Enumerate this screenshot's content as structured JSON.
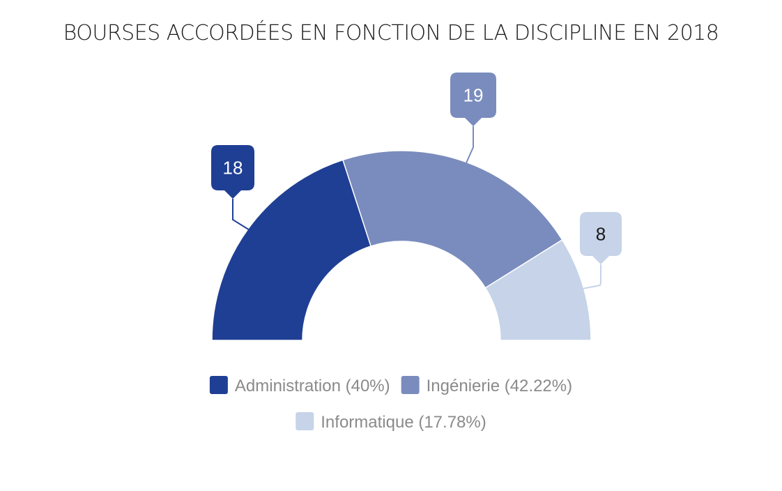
{
  "chart_data": {
    "type": "pie",
    "subtype": "half-donut",
    "title": "BOURSES ACCORDÉES EN FONCTION DE LA DISCIPLINE EN 2018",
    "series": [
      {
        "name": "Administration",
        "value": 18,
        "percent_label": "(40%)",
        "color": "#1f3f94",
        "label_color": "#ffffff"
      },
      {
        "name": "Ingénierie",
        "value": 19,
        "percent_label": "(42.22%)",
        "color": "#7a8cbd",
        "label_color": "#ffffff"
      },
      {
        "name": "Informatique",
        "value": 8,
        "percent_label": "(17.78%)",
        "color": "#c6d3e8",
        "label_color": "#1a1a1a"
      }
    ],
    "legend": "bottom",
    "grid": false
  }
}
